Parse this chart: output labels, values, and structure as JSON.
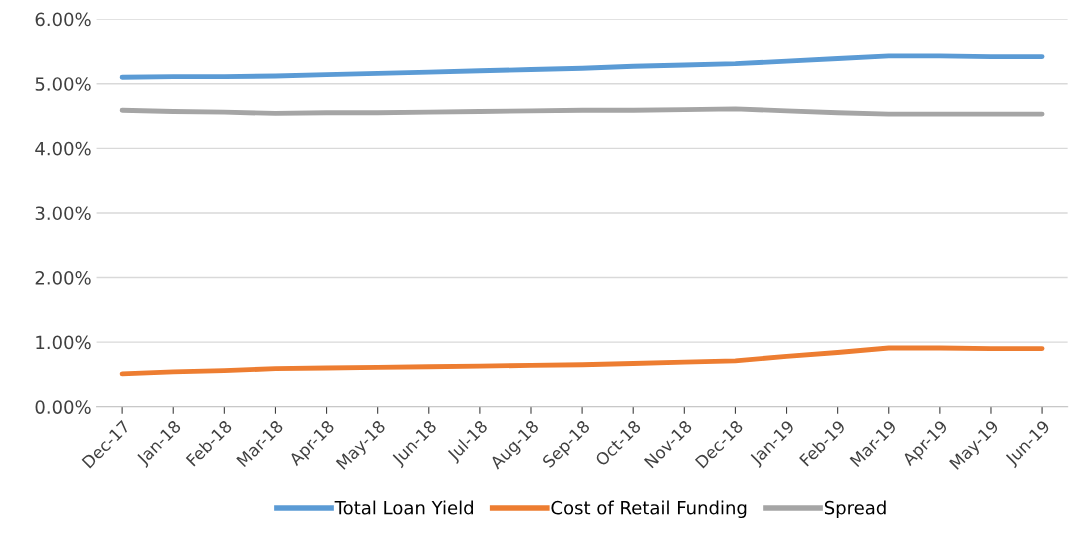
{
  "chart_data": {
    "type": "line",
    "categories": [
      "Dec-17",
      "Jan-18",
      "Feb-18",
      "Mar-18",
      "Apr-18",
      "May-18",
      "Jun-18",
      "Jul-18",
      "Aug-18",
      "Sep-18",
      "Oct-18",
      "Nov-18",
      "Dec-18",
      "Jan-19",
      "Feb-19",
      "Mar-19",
      "Apr-19",
      "May-19",
      "Jun-19"
    ],
    "series": [
      {
        "name": "Total Loan Yield",
        "color": "#5b9bd5",
        "values": [
          5.1,
          5.11,
          5.11,
          5.12,
          5.14,
          5.16,
          5.18,
          5.2,
          5.22,
          5.24,
          5.27,
          5.29,
          5.31,
          5.35,
          5.39,
          5.43,
          5.43,
          5.42,
          5.42
        ]
      },
      {
        "name": "Cost of Retail Funding",
        "color": "#ed7d31",
        "values": [
          0.51,
          0.54,
          0.56,
          0.59,
          0.6,
          0.61,
          0.62,
          0.63,
          0.64,
          0.65,
          0.67,
          0.69,
          0.71,
          0.78,
          0.84,
          0.91,
          0.91,
          0.9,
          0.9
        ]
      },
      {
        "name": "Spread",
        "color": "#a5a5a5",
        "values": [
          4.59,
          4.57,
          4.56,
          4.54,
          4.55,
          4.55,
          4.56,
          4.57,
          4.58,
          4.59,
          4.59,
          4.6,
          4.61,
          4.58,
          4.55,
          4.53,
          4.53,
          4.53,
          4.53
        ]
      }
    ],
    "ylim": [
      0,
      6
    ],
    "yticks": [
      {
        "value": 0,
        "label": "0.00%"
      },
      {
        "value": 1,
        "label": "1.00%"
      },
      {
        "value": 2,
        "label": "2.00%"
      },
      {
        "value": 3,
        "label": "3.00%"
      },
      {
        "value": 4,
        "label": "4.00%"
      },
      {
        "value": 5,
        "label": "5.00%"
      },
      {
        "value": 6,
        "label": "6.00%"
      }
    ],
    "grid": "y",
    "legend": "bottom",
    "marker": "none",
    "line_style": "solid"
  }
}
